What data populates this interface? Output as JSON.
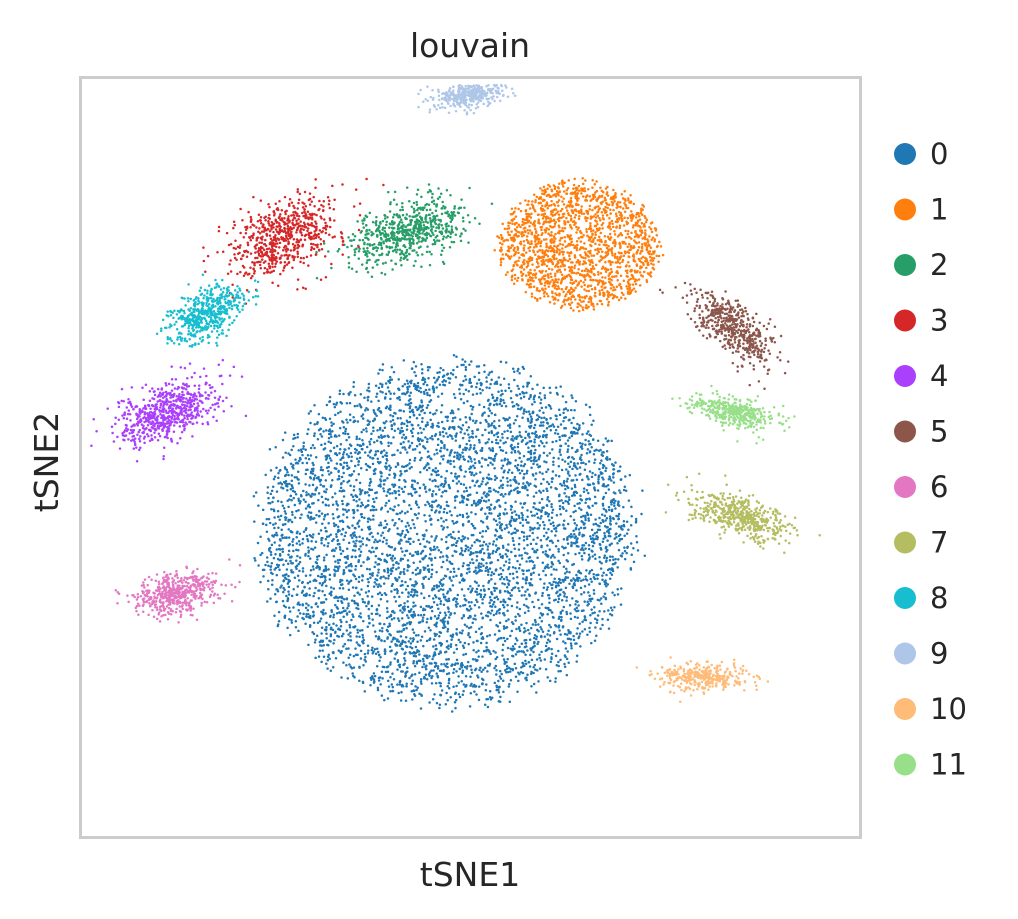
{
  "chart_data": {
    "type": "scatter",
    "title": "louvain",
    "xlabel": "tSNE1",
    "ylabel": "tSNE2",
    "grid": false,
    "ticks": false,
    "legend_position": "right",
    "xlim": [
      -50,
      50
    ],
    "ylim": [
      -50,
      50
    ],
    "clusters": [
      {
        "name": "0",
        "color": "#1f77b4",
        "center": [
          -3,
          -10
        ],
        "spread": [
          26,
          24
        ],
        "count": 5200,
        "shape": "disk"
      },
      {
        "name": "1",
        "color": "#ff7f0e",
        "center": [
          14,
          28
        ],
        "spread": [
          11,
          9
        ],
        "count": 1700,
        "shape": "disk"
      },
      {
        "name": "2",
        "color": "#279e68",
        "center": [
          -8,
          30
        ],
        "spread": [
          3.5,
          7
        ],
        "count": 650,
        "shape": "tilted",
        "angle": -70
      },
      {
        "name": "3",
        "color": "#d62728",
        "center": [
          -24,
          29
        ],
        "spread": [
          4,
          7
        ],
        "count": 650,
        "shape": "tilted",
        "angle": -65
      },
      {
        "name": "4",
        "color": "#aa40fc",
        "center": [
          -39,
          6
        ],
        "spread": [
          6,
          3
        ],
        "count": 650,
        "shape": "tilted",
        "angle": 25
      },
      {
        "name": "5",
        "color": "#8c564b",
        "center": [
          34,
          17
        ],
        "spread": [
          6,
          2.6
        ],
        "count": 500,
        "shape": "tilted",
        "angle": -40
      },
      {
        "name": "6",
        "color": "#e377c2",
        "center": [
          -38,
          -18
        ],
        "spread": [
          5,
          2.4
        ],
        "count": 500,
        "shape": "tilted",
        "angle": 10
      },
      {
        "name": "7",
        "color": "#b5bd61",
        "center": [
          35,
          -8
        ],
        "spread": [
          6,
          2.2
        ],
        "count": 500,
        "shape": "tilted",
        "angle": -18
      },
      {
        "name": "8",
        "color": "#17becf",
        "center": [
          -34,
          19
        ],
        "spread": [
          5,
          2.6
        ],
        "count": 500,
        "shape": "tilted",
        "angle": 30
      },
      {
        "name": "9",
        "color": "#aec7e8",
        "center": [
          0,
          48
        ],
        "spread": [
          4,
          1.5
        ],
        "count": 400,
        "shape": "tilted",
        "angle": 10
      },
      {
        "name": "10",
        "color": "#ffbb78",
        "center": [
          30,
          -29
        ],
        "spread": [
          5,
          1.6
        ],
        "count": 350,
        "shape": "tilted",
        "angle": 0
      },
      {
        "name": "11",
        "color": "#98df8a",
        "center": [
          34,
          6
        ],
        "spread": [
          5,
          1.7
        ],
        "count": 400,
        "shape": "tilted",
        "angle": -12
      }
    ]
  }
}
